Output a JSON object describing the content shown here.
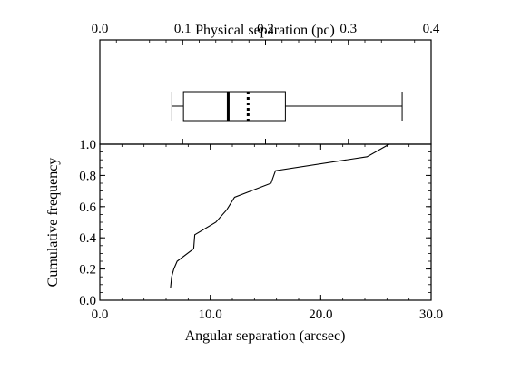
{
  "chart_data": [
    {
      "type": "box",
      "xlabel": "Physical separation (pc)",
      "xlim": [
        0.0,
        0.4
      ],
      "x_ticks": [
        "0.0",
        "0.1",
        "0.2",
        "0.3",
        "0.4"
      ],
      "box": {
        "whisker_low": 0.087,
        "q1": 0.101,
        "median": 0.155,
        "mean": 0.179,
        "q3": 0.224,
        "whisker_high": 0.365
      },
      "median_style": "solid",
      "mean_style": "dotted"
    },
    {
      "type": "line",
      "xlabel": "Angular separation (arcsec)",
      "ylabel": "Cumulative frequency",
      "xlim": [
        0.0,
        30.0
      ],
      "ylim": [
        0.0,
        1.0
      ],
      "x_ticks": [
        "0.0",
        "10.0",
        "20.0",
        "30.0"
      ],
      "y_ticks": [
        "0.0",
        "0.2",
        "0.4",
        "0.6",
        "0.8",
        "1.0"
      ],
      "points": [
        [
          6.4,
          0.08
        ],
        [
          6.5,
          0.15
        ],
        [
          6.7,
          0.2
        ],
        [
          7.0,
          0.25
        ],
        [
          8.5,
          0.33
        ],
        [
          8.6,
          0.42
        ],
        [
          10.5,
          0.5
        ],
        [
          11.5,
          0.58
        ],
        [
          12.2,
          0.66
        ],
        [
          15.5,
          0.75
        ],
        [
          15.9,
          0.83
        ],
        [
          24.2,
          0.92
        ],
        [
          26.2,
          1.0
        ]
      ]
    }
  ]
}
